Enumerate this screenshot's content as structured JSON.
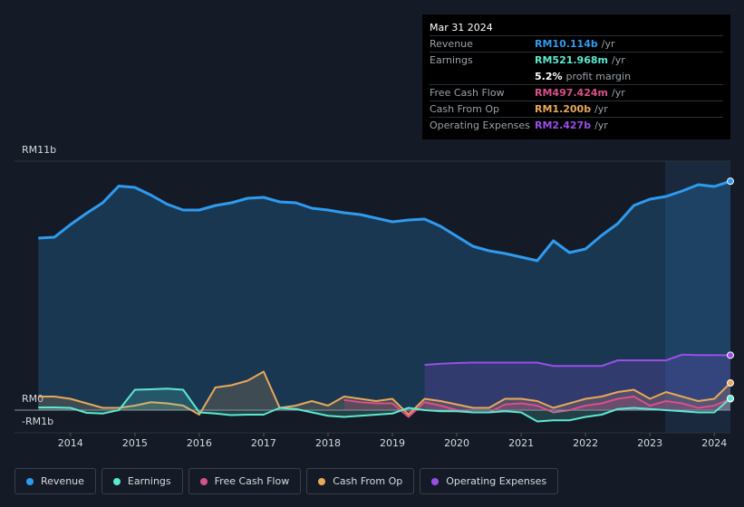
{
  "chart_data": {
    "type": "line",
    "x": [
      2013.5,
      2013.75,
      2014,
      2014.25,
      2014.5,
      2014.75,
      2015,
      2015.25,
      2015.5,
      2015.75,
      2016,
      2016.25,
      2016.5,
      2016.75,
      2017,
      2017.25,
      2017.5,
      2017.75,
      2018,
      2018.25,
      2018.5,
      2018.75,
      2019,
      2019.25,
      2019.5,
      2019.75,
      2020,
      2020.25,
      2020.5,
      2020.75,
      2021,
      2021.25,
      2021.5,
      2021.75,
      2022,
      2022.25,
      2022.5,
      2022.75,
      2023,
      2023.25,
      2023.5,
      2023.75,
      2024,
      2024.25
    ],
    "series": [
      {
        "name": "Revenue",
        "color": "#2e9bf0",
        "values": [
          7.6,
          7.64,
          8.2,
          8.7,
          9.16,
          9.9,
          9.84,
          9.5,
          9.1,
          8.84,
          8.84,
          9.04,
          9.16,
          9.36,
          9.4,
          9.2,
          9.16,
          8.92,
          8.84,
          8.72,
          8.64,
          8.48,
          8.32,
          8.4,
          8.44,
          8.12,
          7.68,
          7.24,
          7.04,
          6.92,
          6.76,
          6.6,
          7.48,
          6.96,
          7.12,
          7.72,
          8.24,
          9.04,
          9.32,
          9.44,
          9.68,
          9.96,
          9.88,
          10.114
        ]
      },
      {
        "name": "Earnings",
        "color": "#5ce8d0",
        "values": [
          0.12,
          0.12,
          0.1,
          -0.12,
          -0.15,
          0.0,
          0.9,
          0.92,
          0.95,
          0.9,
          -0.1,
          -0.15,
          -0.22,
          -0.2,
          -0.2,
          0.1,
          0.05,
          -0.1,
          -0.25,
          -0.3,
          -0.25,
          -0.2,
          -0.15,
          0.1,
          0.0,
          -0.05,
          -0.05,
          -0.1,
          -0.1,
          -0.05,
          -0.1,
          -0.5,
          -0.45,
          -0.45,
          -0.3,
          -0.2,
          0.05,
          0.1,
          0.05,
          0.0,
          -0.05,
          -0.1,
          -0.1,
          0.521968
        ]
      },
      {
        "name": "Free Cash Flow",
        "color": "#d9508a",
        "values": [
          null,
          null,
          null,
          null,
          null,
          null,
          null,
          null,
          null,
          null,
          null,
          null,
          null,
          null,
          null,
          null,
          null,
          null,
          null,
          0.45,
          0.35,
          0.3,
          0.3,
          -0.3,
          0.35,
          0.2,
          0.0,
          -0.1,
          -0.1,
          0.25,
          0.3,
          0.2,
          -0.1,
          0.0,
          0.2,
          0.3,
          0.5,
          0.6,
          0.2,
          0.4,
          0.3,
          0.1,
          0.2,
          0.497424
        ]
      },
      {
        "name": "Cash From Op",
        "color": "#e8a85a",
        "values": [
          0.6,
          0.6,
          0.5,
          0.3,
          0.1,
          0.1,
          0.2,
          0.35,
          0.3,
          0.2,
          -0.2,
          1.0,
          1.1,
          1.3,
          1.7,
          0.1,
          0.2,
          0.4,
          0.2,
          0.6,
          0.5,
          0.4,
          0.5,
          -0.2,
          0.5,
          0.4,
          0.25,
          0.1,
          0.1,
          0.5,
          0.5,
          0.4,
          0.1,
          0.3,
          0.5,
          0.6,
          0.8,
          0.9,
          0.5,
          0.8,
          0.6,
          0.4,
          0.5,
          1.2
        ]
      },
      {
        "name": "Operating Expenses",
        "color": "#9b4de8",
        "values": [
          null,
          null,
          null,
          null,
          null,
          null,
          null,
          null,
          null,
          null,
          null,
          null,
          null,
          null,
          null,
          null,
          null,
          null,
          null,
          null,
          null,
          null,
          null,
          null,
          2.0,
          2.05,
          2.08,
          2.1,
          2.1,
          2.1,
          2.1,
          2.1,
          1.95,
          1.95,
          1.95,
          1.95,
          2.2,
          2.2,
          2.2,
          2.2,
          2.45,
          2.43,
          2.43,
          2.427
        ]
      }
    ],
    "xlim": [
      2013.13,
      2024.25
    ],
    "xticks": [
      2014,
      2015,
      2016,
      2017,
      2018,
      2019,
      2020,
      2021,
      2022,
      2023,
      2024
    ],
    "ylim": [
      -1,
      11
    ],
    "yticks": [
      {
        "value": 11,
        "label": "RM11b"
      },
      {
        "value": 0,
        "label": "RM0"
      },
      {
        "value": -1,
        "label": "-RM1b"
      }
    ],
    "grid": true
  },
  "tooltip": {
    "date": "Mar 31 2024",
    "rows": [
      {
        "label": "Revenue",
        "value": "RM10.114b",
        "unit": "/yr"
      },
      {
        "label": "Earnings",
        "value": "RM521.968m",
        "unit": "/yr"
      },
      {
        "label": "",
        "value": "5.2%",
        "unit": "profit margin"
      },
      {
        "label": "Free Cash Flow",
        "value": "RM497.424m",
        "unit": "/yr"
      },
      {
        "label": "Cash From Op",
        "value": "RM1.200b",
        "unit": "/yr"
      },
      {
        "label": "Operating Expenses",
        "value": "RM2.427b",
        "unit": "/yr"
      }
    ]
  }
}
